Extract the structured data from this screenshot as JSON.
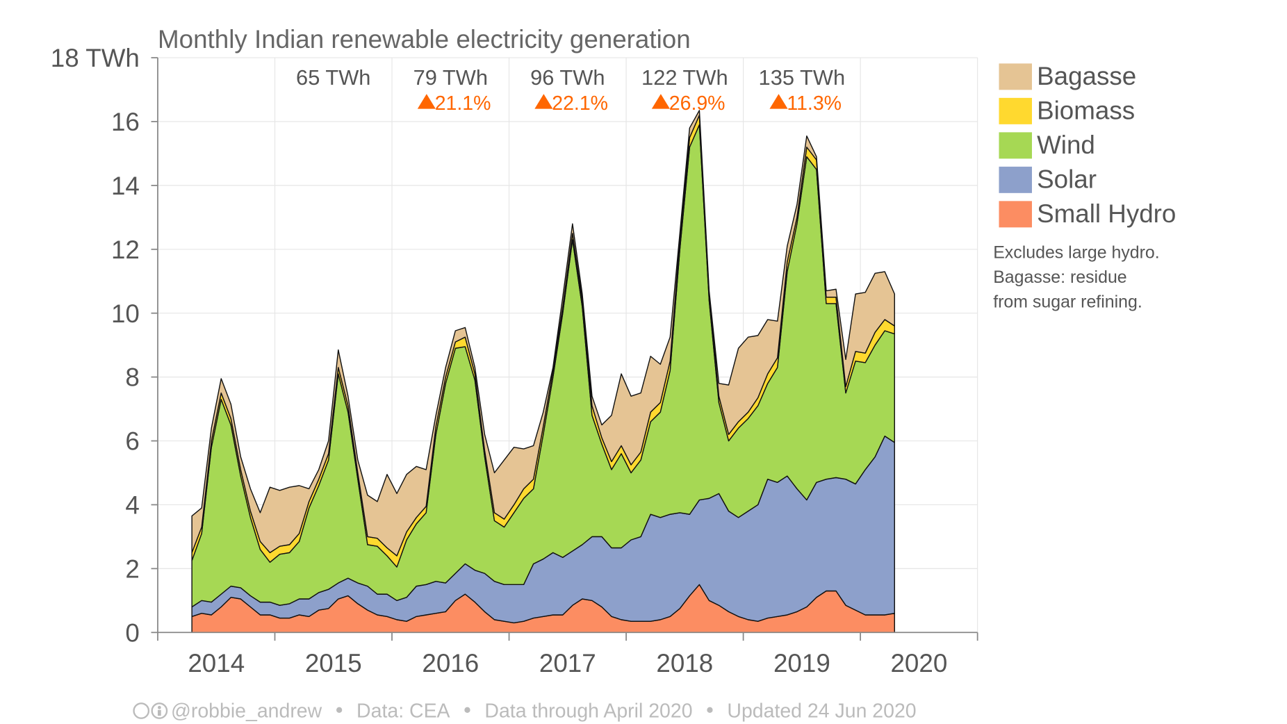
{
  "chart_data": {
    "type": "stacked-area",
    "title": "Monthly Indian renewable electricity generation",
    "x": [
      "2014-04",
      "2014-05",
      "2014-06",
      "2014-07",
      "2014-08",
      "2014-09",
      "2014-10",
      "2014-11",
      "2014-12",
      "2015-01",
      "2015-02",
      "2015-03",
      "2015-04",
      "2015-05",
      "2015-06",
      "2015-07",
      "2015-08",
      "2015-09",
      "2015-10",
      "2015-11",
      "2015-12",
      "2016-01",
      "2016-02",
      "2016-03",
      "2016-04",
      "2016-05",
      "2016-06",
      "2016-07",
      "2016-08",
      "2016-09",
      "2016-10",
      "2016-11",
      "2016-12",
      "2017-01",
      "2017-02",
      "2017-03",
      "2017-04",
      "2017-05",
      "2017-06",
      "2017-07",
      "2017-08",
      "2017-09",
      "2017-10",
      "2017-11",
      "2017-12",
      "2018-01",
      "2018-02",
      "2018-03",
      "2018-04",
      "2018-05",
      "2018-06",
      "2018-07",
      "2018-08",
      "2018-09",
      "2018-10",
      "2018-11",
      "2018-12",
      "2019-01",
      "2019-02",
      "2019-03",
      "2019-04",
      "2019-05",
      "2019-06",
      "2019-07",
      "2019-08",
      "2019-09",
      "2019-10",
      "2019-11",
      "2019-12",
      "2020-01",
      "2020-02",
      "2020-03",
      "2020-04"
    ],
    "series": [
      {
        "name": "Small Hydro",
        "color": "#fc8d62",
        "values": [
          0.5,
          0.6,
          0.55,
          0.8,
          1.1,
          1.05,
          0.8,
          0.55,
          0.55,
          0.45,
          0.45,
          0.55,
          0.5,
          0.7,
          0.75,
          1.05,
          1.15,
          0.9,
          0.7,
          0.55,
          0.5,
          0.4,
          0.35,
          0.5,
          0.55,
          0.6,
          0.65,
          1.0,
          1.2,
          0.95,
          0.65,
          0.4,
          0.35,
          0.3,
          0.35,
          0.45,
          0.5,
          0.55,
          0.55,
          0.85,
          1.05,
          1.0,
          0.8,
          0.5,
          0.4,
          0.35,
          0.35,
          0.35,
          0.4,
          0.5,
          0.75,
          1.15,
          1.5,
          1.0,
          0.85,
          0.65,
          0.5,
          0.4,
          0.35,
          0.45,
          0.5,
          0.55,
          0.65,
          0.8,
          1.1,
          1.3,
          1.3,
          0.85,
          0.7,
          0.55,
          0.55,
          0.55,
          0.6
        ]
      },
      {
        "name": "Solar",
        "color": "#8da0cb",
        "values": [
          0.3,
          0.4,
          0.4,
          0.4,
          0.35,
          0.35,
          0.35,
          0.4,
          0.4,
          0.4,
          0.45,
          0.5,
          0.55,
          0.55,
          0.6,
          0.5,
          0.55,
          0.65,
          0.75,
          0.65,
          0.7,
          0.6,
          0.75,
          0.95,
          0.95,
          1.0,
          0.9,
          0.85,
          0.95,
          1.0,
          1.2,
          1.2,
          1.15,
          1.2,
          1.15,
          1.7,
          1.8,
          1.95,
          1.8,
          1.7,
          1.7,
          2.0,
          2.2,
          2.15,
          2.25,
          2.55,
          2.65,
          3.35,
          3.2,
          3.2,
          3.0,
          2.55,
          2.65,
          3.2,
          3.5,
          3.15,
          3.1,
          3.4,
          3.65,
          4.35,
          4.2,
          4.35,
          3.85,
          3.35,
          3.6,
          3.5,
          3.55,
          3.95,
          3.95,
          4.55,
          4.95,
          5.6,
          5.35
        ]
      },
      {
        "name": "Wind",
        "color": "#a6d854",
        "values": [
          1.45,
          2.1,
          4.85,
          6.1,
          5.05,
          3.5,
          2.45,
          1.65,
          1.25,
          1.6,
          1.6,
          1.8,
          2.85,
          3.35,
          4.05,
          6.55,
          5.2,
          3.25,
          1.3,
          1.5,
          1.2,
          1.05,
          1.8,
          1.95,
          2.25,
          4.6,
          6.25,
          7.05,
          6.8,
          5.95,
          3.65,
          1.9,
          1.8,
          2.25,
          2.7,
          2.35,
          3.9,
          5.5,
          7.65,
          9.75,
          7.45,
          3.8,
          2.9,
          2.45,
          2.95,
          2.1,
          2.4,
          2.9,
          3.3,
          4.5,
          8.25,
          11.5,
          11.75,
          6.2,
          2.85,
          2.2,
          2.8,
          2.9,
          3.1,
          3.0,
          3.6,
          6.4,
          8.3,
          10.75,
          9.8,
          5.5,
          5.45,
          2.7,
          3.85,
          3.35,
          3.5,
          3.3,
          3.4
        ]
      },
      {
        "name": "Biomass",
        "color": "#ffd92f",
        "values": [
          0.25,
          0.2,
          0.2,
          0.2,
          0.2,
          0.2,
          0.2,
          0.25,
          0.3,
          0.25,
          0.25,
          0.25,
          0.2,
          0.2,
          0.2,
          0.2,
          0.2,
          0.2,
          0.25,
          0.25,
          0.25,
          0.35,
          0.25,
          0.2,
          0.2,
          0.25,
          0.2,
          0.2,
          0.3,
          0.2,
          0.2,
          0.25,
          0.25,
          0.25,
          0.3,
          0.3,
          0.25,
          0.2,
          0.2,
          0.2,
          0.2,
          0.3,
          0.2,
          0.25,
          0.25,
          0.25,
          0.25,
          0.3,
          0.3,
          0.3,
          0.3,
          0.3,
          0.3,
          0.2,
          0.2,
          0.2,
          0.2,
          0.2,
          0.25,
          0.3,
          0.3,
          0.3,
          0.2,
          0.3,
          0.3,
          0.2,
          0.2,
          0.2,
          0.3,
          0.3,
          0.4,
          0.35,
          0.25
        ]
      },
      {
        "name": "Bagasse",
        "color": "#e5c494",
        "values": [
          1.15,
          0.6,
          0.4,
          0.45,
          0.45,
          0.4,
          0.7,
          0.9,
          2.05,
          1.75,
          1.8,
          1.5,
          0.4,
          0.3,
          0.4,
          0.55,
          0.3,
          0.4,
          1.3,
          1.15,
          2.3,
          1.95,
          1.8,
          1.6,
          1.15,
          0.35,
          0.3,
          0.35,
          0.3,
          0.2,
          0.5,
          1.25,
          1.85,
          1.8,
          1.25,
          1.05,
          0.45,
          0.1,
          0.3,
          0.3,
          0.2,
          0.3,
          0.4,
          1.45,
          2.25,
          2.15,
          1.85,
          1.75,
          1.2,
          0.75,
          0.2,
          0.3,
          0.15,
          0.1,
          0.4,
          1.55,
          2.3,
          2.35,
          1.95,
          1.7,
          1.15,
          0.5,
          0.4,
          0.35,
          0.1,
          0.2,
          0.25,
          0.85,
          1.8,
          1.9,
          1.85,
          1.5,
          1.0
        ]
      }
    ],
    "xlim": [
      "2014-01",
      "2021-01"
    ],
    "xticks": [
      "2014",
      "2015",
      "2016",
      "2017",
      "2018",
      "2019",
      "2020"
    ],
    "ylim": [
      0,
      18
    ],
    "yticks": [
      0,
      2,
      4,
      6,
      8,
      10,
      12,
      14,
      16,
      {
        "value": 18,
        "label": "18 TWh"
      }
    ],
    "grid": true,
    "legend": "right",
    "annotations": [
      {
        "label": "65 TWh"
      },
      {
        "label": "79 TWh",
        "change": "21.1%"
      },
      {
        "label": "96 TWh",
        "change": "22.1%"
      },
      {
        "label": "122 TWh",
        "change": "26.9%"
      },
      {
        "label": "135 TWh",
        "change": "11.3%"
      }
    ],
    "annotation_color": "#ff6600",
    "note": [
      "Excludes large hydro.",
      "Bagasse: residue",
      "from sugar refining."
    ],
    "footer": [
      "@robbie_andrew",
      "Data: CEA",
      "Data through April 2020",
      "Updated 24 Jun 2020"
    ]
  }
}
